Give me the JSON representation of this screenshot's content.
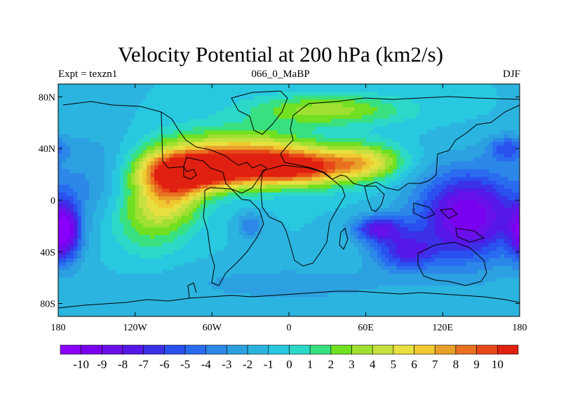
{
  "title": "Velocity Potential at 200 hPa (km2/s)",
  "subtitle_left": "Expt = texzn1",
  "subtitle_center": "066_0_MaBP",
  "subtitle_right": "DJF",
  "map": {
    "projection": "cylindrical-equidistant",
    "lon_range": [
      -180,
      180
    ],
    "lat_range": [
      -90,
      90
    ],
    "x_ticks": [
      {
        "value": -180,
        "label": "180"
      },
      {
        "value": -120,
        "label": "120W"
      },
      {
        "value": -60,
        "label": "60W"
      },
      {
        "value": 0,
        "label": "0"
      },
      {
        "value": 60,
        "label": "60E"
      },
      {
        "value": 120,
        "label": "120E"
      },
      {
        "value": 180,
        "label": "180"
      }
    ],
    "y_ticks": [
      {
        "value": 80,
        "label": "80N"
      },
      {
        "value": 40,
        "label": "40N"
      },
      {
        "value": 0,
        "label": "0"
      },
      {
        "value": -40,
        "label": "40S"
      },
      {
        "value": -80,
        "label": "80S"
      }
    ],
    "field_features": [
      {
        "lon": -70,
        "lat": 22,
        "value": 9.5,
        "rx": 40,
        "ry": 14
      },
      {
        "lon": 5,
        "lat": 25,
        "value": 9.0,
        "rx": 45,
        "ry": 14
      },
      {
        "lon": -90,
        "lat": 10,
        "value": 5.0,
        "rx": 25,
        "ry": 25
      },
      {
        "lon": -40,
        "lat": 35,
        "value": 6.0,
        "rx": 60,
        "ry": 20
      },
      {
        "lon": 60,
        "lat": 30,
        "value": 4.5,
        "rx": 30,
        "ry": 14
      },
      {
        "lon": 30,
        "lat": 70,
        "value": 3.5,
        "rx": 60,
        "ry": 12
      },
      {
        "lon": -110,
        "lat": -10,
        "value": 3.0,
        "rx": 30,
        "ry": 30
      },
      {
        "lon": 140,
        "lat": -12,
        "value": -10.0,
        "rx": 40,
        "ry": 35
      },
      {
        "lon": 70,
        "lat": -22,
        "value": -7.5,
        "rx": 20,
        "ry": 10
      },
      {
        "lon": 90,
        "lat": -40,
        "value": -6.5,
        "rx": 25,
        "ry": 14
      },
      {
        "lon": -175,
        "lat": -25,
        "value": -9.0,
        "rx": 12,
        "ry": 22
      },
      {
        "lon": -150,
        "lat": 20,
        "value": -3.0,
        "rx": 30,
        "ry": 35
      },
      {
        "lon": -30,
        "lat": -20,
        "value": -4.0,
        "rx": 10,
        "ry": 10
      },
      {
        "lon": 170,
        "lat": 40,
        "value": -5.0,
        "rx": 15,
        "ry": 10
      },
      {
        "lon": 0,
        "lat": -65,
        "value": -2.5,
        "rx": 100,
        "ry": 15
      }
    ],
    "background_value": -1.0,
    "coastline_color": "#000000"
  },
  "colorbar": {
    "levels": [
      "-10",
      "-9",
      "-8",
      "-7",
      "-6",
      "-5",
      "-4",
      "-3",
      "-2",
      "-1",
      "0",
      "1",
      "2",
      "3",
      "4",
      "5",
      "6",
      "7",
      "8",
      "9",
      "10"
    ],
    "colors": [
      "#8a00ff",
      "#7a00f0",
      "#6a10ea",
      "#5518e8",
      "#3c30e8",
      "#2a50f0",
      "#2a6cf0",
      "#2c88e8",
      "#2ca0e0",
      "#2cb4e0",
      "#28c8e0",
      "#2cd8c8",
      "#38e080",
      "#70e020",
      "#a0e030",
      "#c8e040",
      "#e8e040",
      "#f0c830",
      "#e8a028",
      "#e87020",
      "#e84818",
      "#e02010"
    ]
  }
}
